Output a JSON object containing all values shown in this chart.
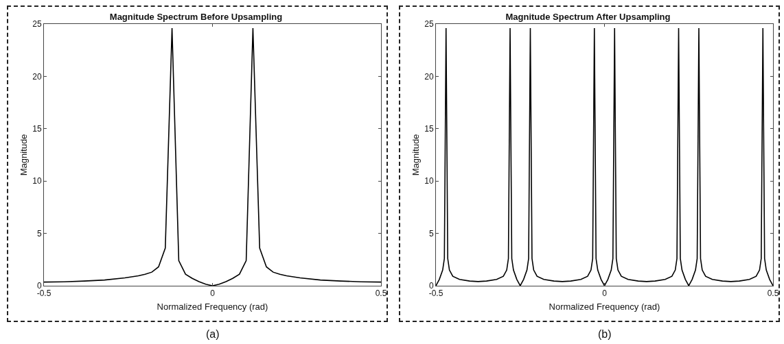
{
  "chart_data": [
    {
      "type": "line",
      "title": "Magnitude Spectrum Before Upsampling",
      "xlabel": "Normalized Frequency (rad)",
      "ylabel": "Magnitude",
      "annotations": [
        "(a)"
      ],
      "color": "#000000",
      "x": [
        -0.5,
        -0.44,
        -0.38,
        -0.32,
        -0.26,
        -0.22,
        -0.2,
        -0.18,
        -0.16,
        -0.14,
        -0.12,
        -0.1,
        -0.08,
        -0.06,
        -0.04,
        -0.02,
        0,
        0.02,
        0.04,
        0.06,
        0.08,
        0.1,
        0.12,
        0.14,
        0.16,
        0.18,
        0.2,
        0.22,
        0.26,
        0.32,
        0.38,
        0.44,
        0.5
      ],
      "values": [
        0.35,
        0.38,
        0.45,
        0.55,
        0.75,
        0.95,
        1.1,
        1.3,
        1.8,
        3.6,
        24.6,
        2.4,
        1.1,
        0.7,
        0.4,
        0.15,
        0,
        0.15,
        0.4,
        0.7,
        1.1,
        2.4,
        24.6,
        3.6,
        1.8,
        1.3,
        1.1,
        0.95,
        0.75,
        0.55,
        0.45,
        0.38,
        0.35
      ],
      "xlim": [
        -0.5,
        0.5
      ],
      "xticks": [
        -0.5,
        0,
        0.5
      ],
      "ylim": [
        0,
        25
      ],
      "yticks": [
        0,
        5,
        10,
        15,
        20,
        25
      ]
    },
    {
      "type": "line",
      "title": "Magnitude Spectrum After Upsampling",
      "xlabel": "Normalized Frequency (rad)",
      "ylabel": "Magnitude",
      "annotations": [
        "(b)"
      ],
      "color": "#000000",
      "x": [
        -0.5,
        -0.495,
        -0.49,
        -0.48,
        -0.475,
        -0.47,
        -0.465,
        -0.46,
        -0.45,
        -0.43,
        -0.4,
        -0.375,
        -0.35,
        -0.32,
        -0.3,
        -0.29,
        -0.285,
        -0.28,
        -0.275,
        -0.27,
        -0.26,
        -0.255,
        -0.25,
        -0.245,
        -0.24,
        -0.23,
        -0.225,
        -0.22,
        -0.215,
        -0.21,
        -0.2,
        -0.18,
        -0.15,
        -0.125,
        -0.1,
        -0.07,
        -0.05,
        -0.04,
        -0.035,
        -0.03,
        -0.025,
        -0.02,
        -0.01,
        -0.005,
        0,
        0.005,
        0.01,
        0.02,
        0.025,
        0.03,
        0.035,
        0.04,
        0.05,
        0.07,
        0.1,
        0.125,
        0.15,
        0.18,
        0.2,
        0.21,
        0.215,
        0.22,
        0.225,
        0.23,
        0.24,
        0.245,
        0.25,
        0.255,
        0.26,
        0.27,
        0.275,
        0.28,
        0.285,
        0.29,
        0.3,
        0.32,
        0.35,
        0.375,
        0.4,
        0.43,
        0.45,
        0.46,
        0.465,
        0.47,
        0.475,
        0.48,
        0.49,
        0.495,
        0.5
      ],
      "values": [
        0,
        0.3,
        0.6,
        1.5,
        2.6,
        24.6,
        2.6,
        1.5,
        0.9,
        0.6,
        0.45,
        0.4,
        0.45,
        0.6,
        0.9,
        1.5,
        2.6,
        24.6,
        2.6,
        1.5,
        0.6,
        0.3,
        0,
        0.3,
        0.6,
        1.5,
        2.6,
        24.6,
        2.6,
        1.5,
        0.9,
        0.6,
        0.45,
        0.4,
        0.45,
        0.6,
        0.9,
        1.5,
        2.6,
        24.6,
        2.6,
        1.5,
        0.6,
        0.3,
        0,
        0.3,
        0.6,
        1.5,
        2.6,
        24.6,
        2.6,
        1.5,
        0.9,
        0.6,
        0.45,
        0.4,
        0.45,
        0.6,
        0.9,
        1.5,
        2.6,
        24.6,
        2.6,
        1.5,
        0.6,
        0.3,
        0,
        0.3,
        0.6,
        1.5,
        2.6,
        24.6,
        2.6,
        1.5,
        0.9,
        0.6,
        0.45,
        0.4,
        0.45,
        0.6,
        0.9,
        1.5,
        2.6,
        24.6,
        2.6,
        1.5,
        0.6,
        0.3,
        0
      ],
      "xlim": [
        -0.5,
        0.5
      ],
      "xticks": [
        -0.5,
        0,
        0.5
      ],
      "ylim": [
        0,
        25
      ],
      "yticks": [
        0,
        5,
        10,
        15,
        20,
        25
      ]
    }
  ]
}
